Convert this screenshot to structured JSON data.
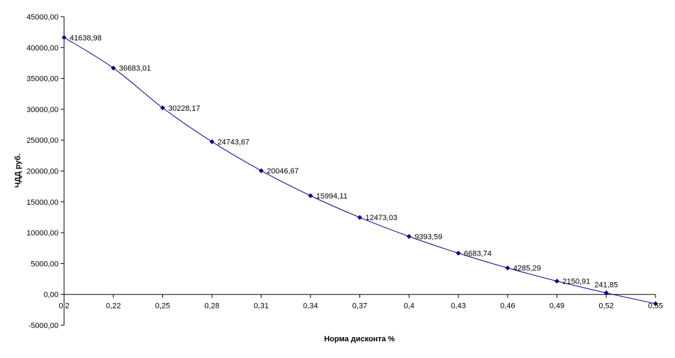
{
  "chart_data": {
    "type": "line",
    "xlabel": "Норма дисконта %",
    "ylabel": "ЧДД руб.",
    "ylim": [
      -5000,
      45000
    ],
    "grid": false,
    "legend": "none",
    "line_color": "#000080",
    "marker_color": "#000080",
    "marker": "diamond",
    "categories": [
      "0,2",
      "0,22",
      "0,25",
      "0,28",
      "0,31",
      "0,34",
      "0,37",
      "0,4",
      "0,43",
      "0,46",
      "0,49",
      "0,52",
      "0,55"
    ],
    "y_ticks": [
      {
        "value": -5000,
        "label": "-5000,00"
      },
      {
        "value": 0,
        "label": "0,00"
      },
      {
        "value": 5000,
        "label": "5000,00"
      },
      {
        "value": 10000,
        "label": "10000,00"
      },
      {
        "value": 15000,
        "label": "15000,00"
      },
      {
        "value": 20000,
        "label": "20000,00"
      },
      {
        "value": 25000,
        "label": "25000,00"
      },
      {
        "value": 30000,
        "label": "30000,00"
      },
      {
        "value": 35000,
        "label": "35000,00"
      },
      {
        "value": 40000,
        "label": "40000,00"
      },
      {
        "value": 45000,
        "label": "45000,00"
      }
    ],
    "series": [
      {
        "values": [
          41638.98,
          36683.01,
          30228.17,
          24743.67,
          20046.67,
          15994.11,
          12473.03,
          9393.59,
          6683.74,
          4285.29,
          2150.91,
          241.85,
          -1500
        ],
        "labels": [
          "41638,98",
          "36683,01",
          "30228,17",
          "24743,67",
          "20046,67",
          "15994,11",
          "12473,03",
          "9393,59",
          "6683,74",
          "4285,29",
          "2150,91",
          "241,85",
          ""
        ]
      }
    ]
  }
}
